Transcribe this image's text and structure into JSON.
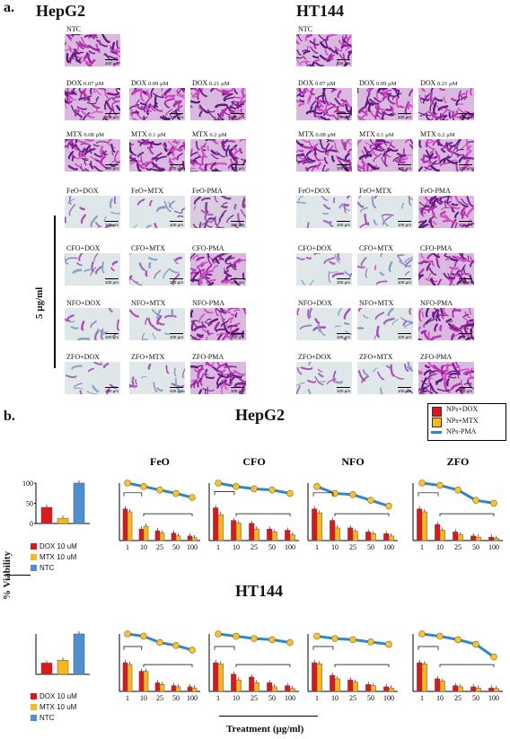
{
  "panel_a": {
    "letter": "a.",
    "left_title": "HepG2",
    "right_title": "HT144",
    "concentration_label": "5 µg/ml",
    "scale_text": "100 µm",
    "left_rows": [
      [
        {
          "label": "NTC",
          "sub": "",
          "tone": "purple"
        }
      ],
      [
        {
          "label": "DOX",
          "sub": "0.07 µM",
          "tone": "purple"
        },
        {
          "label": "DOX",
          "sub": "0.09 µM",
          "tone": "purple"
        },
        {
          "label": "DOX",
          "sub": "0.21 µM",
          "tone": "purple"
        }
      ],
      [
        {
          "label": "MTX",
          "sub": "0.08 µM",
          "tone": "purple"
        },
        {
          "label": "MTX",
          "sub": "0.1 µM",
          "tone": "purple"
        },
        {
          "label": "MTX",
          "sub": "0.2 µM",
          "tone": "purple"
        }
      ],
      [
        {
          "label": "FeO+DOX",
          "sub": "",
          "tone": "pale"
        },
        {
          "label": "FeO+MTX",
          "sub": "",
          "tone": "pale"
        },
        {
          "label": "FeO-PMA",
          "sub": "",
          "tone": "mid"
        }
      ],
      [
        {
          "label": "CFO+DOX",
          "sub": "",
          "tone": "pale"
        },
        {
          "label": "CFO+MTX",
          "sub": "",
          "tone": "pale"
        },
        {
          "label": "CFO-PMA",
          "sub": "",
          "tone": "purple"
        }
      ],
      [
        {
          "label": "NFO+DOX",
          "sub": "",
          "tone": "pale"
        },
        {
          "label": "NFO+MTX",
          "sub": "",
          "tone": "pale"
        },
        {
          "label": "NFO-PMA",
          "sub": "",
          "tone": "purple"
        }
      ],
      [
        {
          "label": "ZFO+DOX",
          "sub": "",
          "tone": "pale"
        },
        {
          "label": "ZFO+MTX",
          "sub": "",
          "tone": "pale"
        },
        {
          "label": "ZFO-PMA",
          "sub": "",
          "tone": "purple"
        }
      ]
    ],
    "right_rows": [
      [
        {
          "label": "NTC",
          "sub": "",
          "tone": "purple"
        }
      ],
      [
        {
          "label": "DOX",
          "sub": "0.07 µM",
          "tone": "purple"
        },
        {
          "label": "DOX",
          "sub": "0.09 µM",
          "tone": "purple"
        },
        {
          "label": "DOX",
          "sub": "0.21 µM",
          "tone": "purple"
        }
      ],
      [
        {
          "label": "MTX",
          "sub": "0.08 µM",
          "tone": "purple"
        },
        {
          "label": "MTX",
          "sub": "0.1 µM",
          "tone": "purple"
        },
        {
          "label": "MTX",
          "sub": "0.2 µM",
          "tone": "purple"
        }
      ],
      [
        {
          "label": "FeO+DOX",
          "sub": "",
          "tone": "pale"
        },
        {
          "label": "FeO+MTX",
          "sub": "",
          "tone": "pale"
        },
        {
          "label": "FeO-PMA",
          "sub": "",
          "tone": "purple"
        }
      ],
      [
        {
          "label": "CFO+DOX",
          "sub": "",
          "tone": "pale"
        },
        {
          "label": "CFO+MTX",
          "sub": "",
          "tone": "pale"
        },
        {
          "label": "CFO-PMA",
          "sub": "",
          "tone": "purple"
        }
      ],
      [
        {
          "label": "NFO+DOX",
          "sub": "",
          "tone": "pale"
        },
        {
          "label": "NFO+MTX",
          "sub": "",
          "tone": "pale"
        },
        {
          "label": "NFO-PMA",
          "sub": "",
          "tone": "purple"
        }
      ],
      [
        {
          "label": "ZFO+DOX",
          "sub": "",
          "tone": "pale"
        },
        {
          "label": "ZFO+MTX",
          "sub": "",
          "tone": "pale"
        },
        {
          "label": "ZFO-PMA",
          "sub": "",
          "tone": "purple"
        }
      ]
    ]
  },
  "panel_b": {
    "letter": "b.",
    "hepg2_title": "HepG2",
    "ht144_title": "HT144",
    "y_axis_label": "% Viability",
    "x_axis_label": "Treatment (µg/ml)",
    "legend": {
      "dox": "NPs+DOX",
      "mtx": "NPs+MTX",
      "pma": "NPs-PMA"
    },
    "ctrl_legend": {
      "dox": "DOX 10 uM",
      "mtx": "MTX 10 uM",
      "ntc": "NTC"
    }
  },
  "colors": {
    "dox": "#d9191c",
    "mtx": "#f6b81a",
    "pma": "#2f86c9",
    "ntc": "#4f8fd1",
    "dot_fill": "#f6c335"
  },
  "chart_data": [
    {
      "type": "bar",
      "title": "",
      "cell_line": "HepG2",
      "panel": "control",
      "categories": [
        "DOX 10 uM",
        "MTX 10 uM",
        "NTC"
      ],
      "values": [
        40,
        13,
        100
      ],
      "ylim": [
        0,
        100
      ],
      "yticks": [
        0,
        50,
        100
      ]
    },
    {
      "type": "bar",
      "title": "FeO",
      "cell_line": "HepG2",
      "categories": [
        "1",
        "10",
        "25",
        "50",
        "100"
      ],
      "series": [
        {
          "name": "NPs+DOX",
          "values": [
            55,
            20,
            17,
            13,
            8
          ]
        },
        {
          "name": "NPs+MTX",
          "values": [
            50,
            25,
            13,
            8,
            5
          ]
        },
        {
          "name": "NPs-PMA",
          "values": [
            100,
            94,
            88,
            82,
            75
          ]
        }
      ],
      "ylim": [
        0,
        100
      ]
    },
    {
      "type": "bar",
      "title": "CFO",
      "cell_line": "HepG2",
      "categories": [
        "1",
        "10",
        "25",
        "50",
        "100"
      ],
      "series": [
        {
          "name": "NPs+DOX",
          "values": [
            57,
            35,
            30,
            20,
            18
          ]
        },
        {
          "name": "NPs+MTX",
          "values": [
            45,
            30,
            20,
            15,
            10
          ]
        },
        {
          "name": "NPs-PMA",
          "values": [
            100,
            94,
            90,
            88,
            82
          ]
        }
      ],
      "ylim": [
        0,
        100
      ]
    },
    {
      "type": "bar",
      "title": "NFO",
      "cell_line": "HepG2",
      "categories": [
        "1",
        "10",
        "25",
        "50",
        "100"
      ],
      "series": [
        {
          "name": "NPs+DOX",
          "values": [
            55,
            35,
            22,
            15,
            12
          ]
        },
        {
          "name": "NPs+MTX",
          "values": [
            48,
            22,
            16,
            12,
            8
          ]
        },
        {
          "name": "NPs-PMA",
          "values": [
            94,
            82,
            80,
            70,
            60
          ]
        }
      ],
      "ylim": [
        0,
        100
      ]
    },
    {
      "type": "bar",
      "title": "ZFO",
      "cell_line": "HepG2",
      "categories": [
        "1",
        "10",
        "25",
        "50",
        "100"
      ],
      "series": [
        {
          "name": "NPs+DOX",
          "values": [
            55,
            28,
            15,
            8,
            6
          ]
        },
        {
          "name": "NPs+MTX",
          "values": [
            50,
            18,
            10,
            6,
            4
          ]
        },
        {
          "name": "NPs-PMA",
          "values": [
            100,
            96,
            88,
            70,
            65
          ]
        }
      ],
      "ylim": [
        0,
        100
      ]
    },
    {
      "type": "bar",
      "title": "",
      "cell_line": "HT144",
      "panel": "control",
      "categories": [
        "DOX 10 uM",
        "MTX 10 uM",
        "NTC"
      ],
      "values": [
        28,
        35,
        100
      ],
      "ylim": [
        0,
        100
      ]
    },
    {
      "type": "bar",
      "title": "",
      "cell_line": "HT144",
      "categories": [
        "1",
        "10",
        "25",
        "50",
        "100"
      ],
      "series": [
        {
          "name": "NPs+DOX",
          "values": [
            50,
            35,
            15,
            10,
            8
          ]
        },
        {
          "name": "NPs+MTX",
          "values": [
            47,
            35,
            12,
            8,
            6
          ]
        },
        {
          "name": "NPs-PMA",
          "values": [
            100,
            96,
            85,
            80,
            72
          ]
        }
      ],
      "ylim": [
        0,
        100
      ]
    },
    {
      "type": "bar",
      "title": "",
      "cell_line": "HT144",
      "categories": [
        "1",
        "10",
        "25",
        "50",
        "100"
      ],
      "series": [
        {
          "name": "NPs+DOX",
          "values": [
            50,
            30,
            25,
            15,
            10
          ]
        },
        {
          "name": "NPs+MTX",
          "values": [
            48,
            20,
            15,
            8,
            5
          ]
        },
        {
          "name": "NPs-PMA",
          "values": [
            100,
            96,
            92,
            90,
            85
          ]
        }
      ],
      "ylim": [
        0,
        100
      ]
    },
    {
      "type": "bar",
      "title": "",
      "cell_line": "HT144",
      "categories": [
        "1",
        "10",
        "25",
        "50",
        "100"
      ],
      "series": [
        {
          "name": "NPs+DOX",
          "values": [
            50,
            28,
            20,
            12,
            8
          ]
        },
        {
          "name": "NPs+MTX",
          "values": [
            48,
            22,
            16,
            10,
            6
          ]
        },
        {
          "name": "NPs-PMA",
          "values": [
            96,
            92,
            90,
            86,
            82
          ]
        }
      ],
      "ylim": [
        0,
        100
      ]
    },
    {
      "type": "bar",
      "title": "",
      "cell_line": "HT144",
      "categories": [
        "1",
        "10",
        "25",
        "50",
        "100"
      ],
      "series": [
        {
          "name": "NPs+DOX",
          "values": [
            50,
            22,
            10,
            8,
            6
          ]
        },
        {
          "name": "NPs+MTX",
          "values": [
            48,
            18,
            8,
            6,
            5
          ]
        },
        {
          "name": "NPs-PMA",
          "values": [
            100,
            96,
            90,
            82,
            60
          ]
        }
      ],
      "ylim": [
        0,
        100
      ]
    }
  ]
}
